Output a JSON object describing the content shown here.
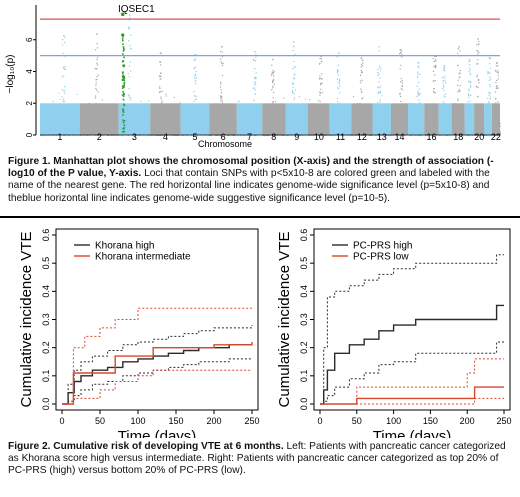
{
  "figure1": {
    "caption_bold": "Figure 1. Manhattan plot shows the chromosomal position (X-axis) and the strength of association (- log10 of the P value, Y-axis.",
    "caption_rest": " Loci that contain SNPs with p<5x10-8 are colored green and labeled with the name of the nearest gene. The red horizontal line indicates genome-wide significance level (p=5x10-8) and theblue horizontal line indicates genome-wide suggestive significance level (p=10-5)."
  },
  "figure2": {
    "caption_bold": "Figure 2. Cumulative risk of developing VTE at 6 months.",
    "caption_rest": " Left: Patients with pancreatic cancer categorized as Khorana score high versus intermediate. Right: Patients with pancreatic cancer categorized as top 20% of PC-PRS (high) versus bottom 20% of PC-PRS (low)."
  },
  "colors": {
    "chrom_light_blue": "#8fd0ee",
    "chrom_gray": "#a7a7a7",
    "significant_green": "#2e9b2e",
    "red_line": "#d9534f",
    "blue_line": "#7aa7d6",
    "series_black": "#2b2b2b",
    "series_red": "#d9472f"
  },
  "chart_data": [
    {
      "type": "scatter",
      "kind": "manhattan",
      "title": "",
      "xlabel": "Chromosome",
      "ylabel": "−log₁₀(p)",
      "ylim": [
        0,
        8
      ],
      "yticks": [
        "0",
        "2",
        "4",
        "6"
      ],
      "chromosomes": [
        "1",
        "2",
        "3",
        "4",
        "5",
        "6",
        "7",
        "8",
        "9",
        "10",
        "11",
        "12",
        "13",
        "14",
        "15",
        "16",
        "17",
        "18",
        "19",
        "20",
        "21",
        "22"
      ],
      "chromosome_labels": [
        "1",
        "2",
        "3",
        "4",
        "5",
        "6",
        "7",
        "8",
        "9",
        "10",
        "11",
        "12",
        "13",
        "14",
        "",
        "16",
        "",
        "18",
        "",
        "20",
        "",
        "22"
      ],
      "significance_line": 7.3,
      "suggestive_line": 5,
      "annotations": [
        {
          "label": "IQSEC1",
          "chromosome": "3",
          "neglog10p": 7.6
        }
      ],
      "peaks": [
        6.3,
        6.4,
        7.6,
        5.2,
        5.1,
        5.6,
        5.3,
        4.8,
        5.9,
        5.0,
        5.2,
        4.9,
        5.6,
        5.4,
        4.6,
        5.0,
        4.4,
        5.6,
        4.8,
        6.1,
        4.9,
        4.6
      ]
    },
    {
      "type": "line",
      "kind": "step",
      "title": "",
      "xlabel": "Time (days)",
      "ylabel": "Cumulative incidence VTE",
      "xlim": [
        0,
        250
      ],
      "ylim": [
        0,
        0.6
      ],
      "xticks": [
        "0",
        "50",
        "100",
        "150",
        "200",
        "250"
      ],
      "yticks": [
        "0.0",
        "0.1",
        "0.2",
        "0.3",
        "0.4",
        "0.5",
        "0.6"
      ],
      "legend_position": "top-left",
      "series": [
        {
          "name": "Khorana high",
          "color": "black",
          "x": [
            0,
            8,
            16,
            25,
            40,
            60,
            80,
            100,
            120,
            140,
            160,
            180,
            200,
            220,
            250
          ],
          "y": [
            0,
            0.04,
            0.08,
            0.1,
            0.12,
            0.13,
            0.15,
            0.16,
            0.17,
            0.18,
            0.19,
            0.2,
            0.2,
            0.21,
            0.21
          ],
          "ci_lower": [
            0,
            0.01,
            0.03,
            0.05,
            0.07,
            0.08,
            0.1,
            0.11,
            0.12,
            0.13,
            0.14,
            0.15,
            0.15,
            0.16,
            0.16
          ],
          "ci_upper": [
            0,
            0.07,
            0.12,
            0.15,
            0.17,
            0.19,
            0.21,
            0.22,
            0.23,
            0.24,
            0.25,
            0.26,
            0.27,
            0.27,
            0.28
          ]
        },
        {
          "name": "Khorana intermediate",
          "color": "red",
          "x": [
            0,
            10,
            15,
            20,
            30,
            50,
            70,
            100,
            120,
            150,
            200,
            250
          ],
          "y": [
            0,
            0,
            0.11,
            0.11,
            0.11,
            0.11,
            0.17,
            0.17,
            0.2,
            0.2,
            0.21,
            0.22
          ],
          "ci_lower": [
            0,
            0,
            0.02,
            0.02,
            0.02,
            0.05,
            0.08,
            0.1,
            0.12,
            0.12,
            0.12,
            0.12
          ],
          "ci_upper": [
            0,
            0,
            0.2,
            0.2,
            0.24,
            0.27,
            0.3,
            0.34,
            0.34,
            0.34,
            0.34,
            0.34
          ]
        }
      ]
    },
    {
      "type": "line",
      "kind": "step",
      "title": "",
      "xlabel": "Time (days)",
      "ylabel": "Cumulative incidence VTE",
      "xlim": [
        0,
        250
      ],
      "ylim": [
        0,
        0.6
      ],
      "xticks": [
        "0",
        "50",
        "100",
        "150",
        "200",
        "250"
      ],
      "yticks": [
        "0.0",
        "0.1",
        "0.2",
        "0.3",
        "0.4",
        "0.5",
        "0.6"
      ],
      "legend_position": "top-left",
      "series": [
        {
          "name": "PC-PRS high",
          "color": "black",
          "x": [
            0,
            5,
            10,
            20,
            40,
            60,
            80,
            100,
            130,
            160,
            200,
            240,
            250
          ],
          "y": [
            0,
            0.05,
            0.12,
            0.18,
            0.21,
            0.23,
            0.26,
            0.28,
            0.3,
            0.3,
            0.3,
            0.35,
            0.35
          ],
          "ci_lower": [
            0,
            0.01,
            0.03,
            0.06,
            0.09,
            0.11,
            0.14,
            0.15,
            0.18,
            0.18,
            0.18,
            0.22,
            0.22
          ],
          "ci_upper": [
            0,
            0.2,
            0.38,
            0.4,
            0.42,
            0.44,
            0.46,
            0.48,
            0.5,
            0.5,
            0.5,
            0.53,
            0.53
          ]
        },
        {
          "name": "PC-PRS low",
          "color": "red",
          "x": [
            0,
            45,
            50,
            200,
            210,
            250
          ],
          "y": [
            0,
            0,
            0.02,
            0.02,
            0.06,
            0.06
          ],
          "ci_lower": [
            0,
            0,
            0,
            0,
            0.02,
            0.02
          ],
          "ci_upper": [
            0,
            0,
            0.06,
            0.11,
            0.16,
            0.16
          ]
        }
      ]
    }
  ]
}
